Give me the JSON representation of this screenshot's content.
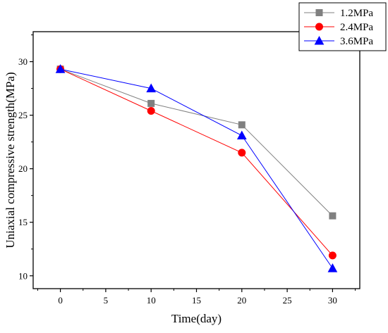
{
  "chart_data": {
    "type": "line",
    "title": "",
    "xlabel": "Time(day)",
    "ylabel": "Uniaxial compressive strength(MPa)",
    "x": [
      0,
      10,
      20,
      30
    ],
    "xlim": [
      -3,
      33
    ],
    "ylim": [
      8.8,
      32.8
    ],
    "xticks": [
      "0",
      "5",
      "10",
      "15",
      "20",
      "25",
      "30"
    ],
    "yticks": [
      "10",
      "15",
      "20",
      "25",
      "30"
    ],
    "grid": false,
    "legend_position": "top-right",
    "series": [
      {
        "name": "1.2MPa",
        "values": [
          29.3,
          26.1,
          24.1,
          15.6
        ],
        "color": "#808080",
        "marker": "square"
      },
      {
        "name": "2.4MPa",
        "values": [
          29.3,
          25.4,
          21.5,
          11.9
        ],
        "color": "#ff0000",
        "marker": "circle"
      },
      {
        "name": "3.6MPa",
        "values": [
          29.3,
          27.5,
          23.1,
          10.7
        ],
        "color": "#0000ff",
        "marker": "triangle"
      }
    ]
  }
}
